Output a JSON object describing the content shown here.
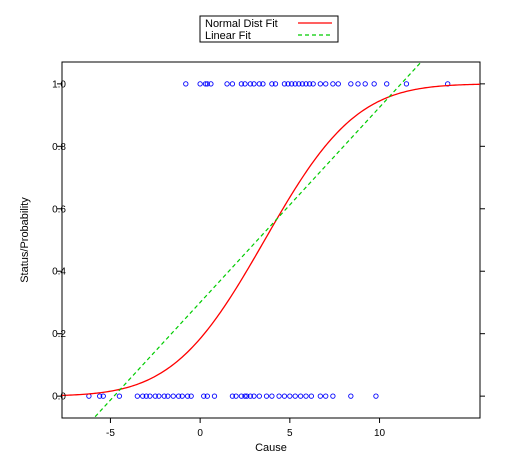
{
  "chart_data": {
    "type": "scatter",
    "xlabel": "Cause",
    "ylabel": "Status/Probability",
    "xlim": [
      -7.7,
      15.6
    ],
    "ylim": [
      -0.07,
      1.07
    ],
    "x_ticks": [
      -5,
      0,
      5,
      10
    ],
    "x_tick_labels": [
      "-5",
      "0",
      "5",
      "10"
    ],
    "y_ticks": [
      0.0,
      0.2,
      0.4,
      0.6,
      0.8,
      1.0
    ],
    "y_tick_labels": [
      "0.0",
      "0.2",
      "0.4",
      "0.6",
      "0.8",
      "1.0"
    ],
    "grid": false,
    "legend_position": "top-center",
    "series": [
      {
        "name": "",
        "kind": "points",
        "color": "#0000ff",
        "x": [
          -6.2,
          -5.6,
          -5.4,
          -4.5,
          -3.5,
          -3.2,
          -3.0,
          -2.8,
          -2.5,
          -2.3,
          -2.0,
          -1.8,
          -1.5,
          -1.2,
          -1.0,
          -0.7,
          -0.5,
          0.2,
          0.4,
          0.8,
          1.8,
          2.0,
          2.3,
          2.5,
          2.6,
          2.8,
          3.0,
          3.3,
          3.7,
          4.0,
          4.4,
          4.7,
          5.0,
          5.3,
          5.6,
          5.9,
          6.2,
          6.7,
          7.0,
          7.4,
          8.4,
          9.8,
          -0.8,
          0.0,
          0.3,
          0.4,
          0.6,
          1.5,
          1.8,
          2.3,
          2.5,
          2.8,
          3.0,
          3.3,
          3.5,
          4.0,
          4.2,
          4.7,
          4.9,
          5.1,
          5.3,
          5.5,
          5.7,
          5.9,
          6.1,
          6.3,
          6.7,
          7.0,
          7.4,
          7.7,
          8.4,
          8.8,
          9.2,
          9.7,
          10.4,
          11.5,
          13.8
        ],
        "y": [
          0,
          0,
          0,
          0,
          0,
          0,
          0,
          0,
          0,
          0,
          0,
          0,
          0,
          0,
          0,
          0,
          0,
          0,
          0,
          0,
          0,
          0,
          0,
          0,
          0,
          0,
          0,
          0,
          0,
          0,
          0,
          0,
          0,
          0,
          0,
          0,
          0,
          0,
          0,
          0,
          0,
          0,
          1,
          1,
          1,
          1,
          1,
          1,
          1,
          1,
          1,
          1,
          1,
          1,
          1,
          1,
          1,
          1,
          1,
          1,
          1,
          1,
          1,
          1,
          1,
          1,
          1,
          1,
          1,
          1,
          1,
          1,
          1,
          1,
          1,
          1,
          1
        ]
      },
      {
        "name": "Normal Dist Fit",
        "kind": "normal-cdf",
        "color": "#ff0000",
        "mean": 3.6,
        "sd": 4.0
      },
      {
        "name": "Linear Fit",
        "kind": "linear",
        "color": "#00cc00",
        "intercept": 0.3,
        "slope": 0.0625,
        "dash": true
      }
    ]
  }
}
